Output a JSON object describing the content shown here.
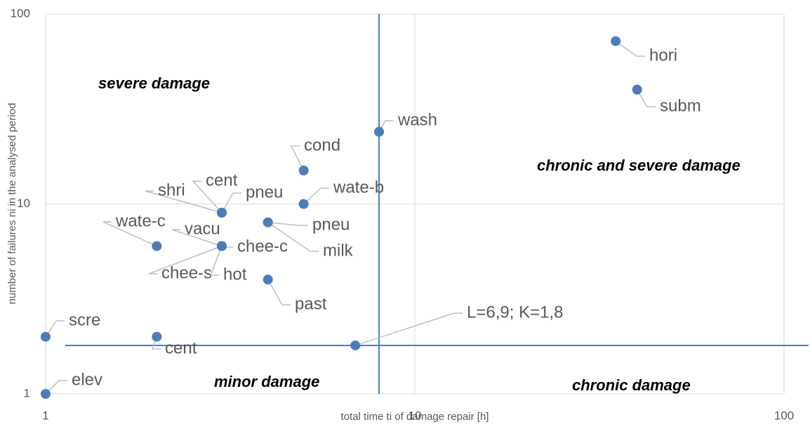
{
  "chart_data": {
    "type": "scatter",
    "xlabel": "total time ti of damage repair [h]",
    "ylabel": "number of failures ni in the analysed period",
    "xlim": [
      1,
      100
    ],
    "ylim": [
      1,
      100
    ],
    "xticks": [
      1,
      10,
      100
    ],
    "yticks": [
      1,
      10,
      100
    ],
    "log_x": true,
    "log_y": true,
    "grid": true,
    "series": [
      {
        "color": "#4a7ebb",
        "labels": [
          "hori",
          "subm",
          "wash",
          "cond",
          "wate-b",
          "cent",
          "shri",
          "pneu",
          "pneu",
          "milk",
          "wate-c",
          "vacu",
          "chee-c",
          "chee-s",
          "hot",
          "past",
          "scre",
          "cent",
          "L=6,9;  K=1,8",
          "elev"
        ],
        "x": [
          35,
          40,
          8,
          5,
          5,
          3,
          3,
          3,
          4,
          4,
          2,
          3,
          3,
          3,
          3,
          4,
          1,
          2,
          6.9,
          1
        ],
        "values": [
          72,
          40,
          24,
          15,
          10,
          9,
          9,
          9,
          8,
          8,
          6,
          6,
          6,
          6,
          6,
          4,
          2,
          2,
          1.8,
          1
        ]
      }
    ],
    "vline": 8,
    "hline": 1.8,
    "line_color": "#4a7ebb",
    "annotations": [
      "severe damage",
      "chronic and severe damage",
      "minor damage",
      "chronic damage"
    ]
  }
}
